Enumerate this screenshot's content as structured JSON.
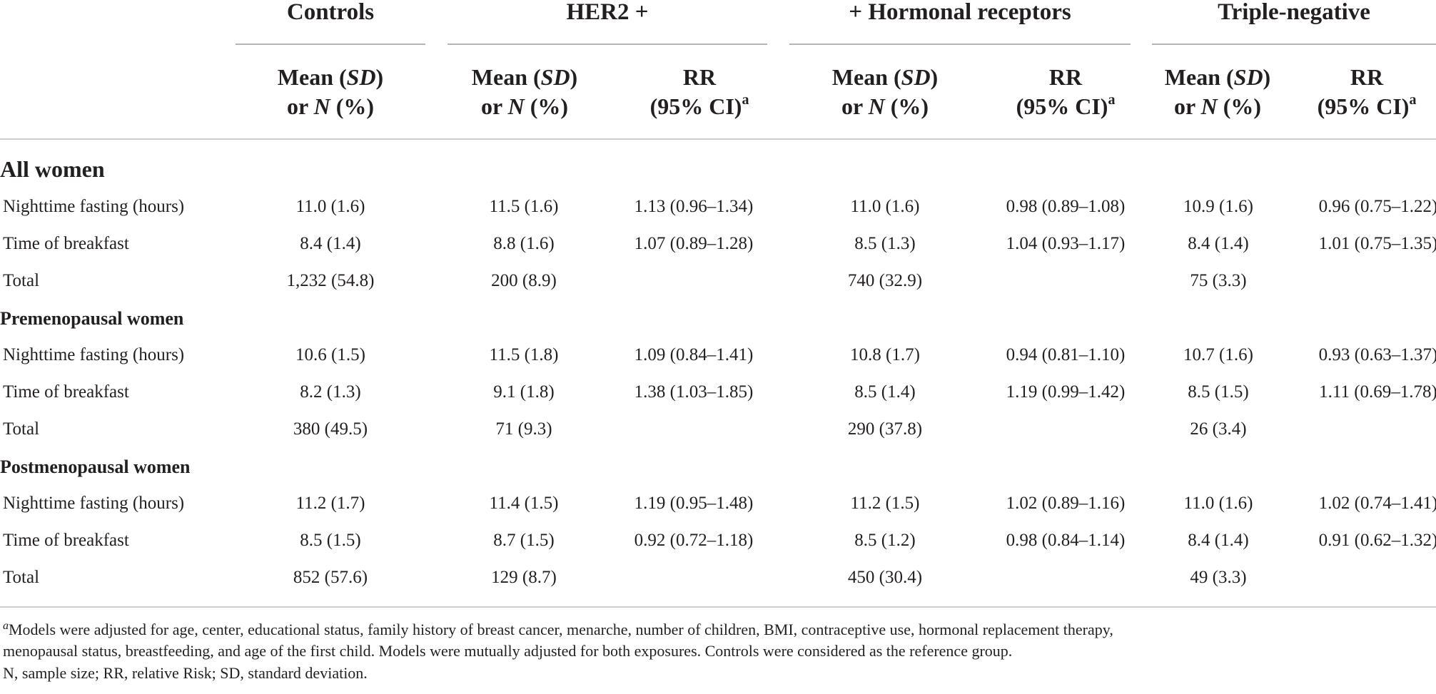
{
  "groups": {
    "controls": "Controls",
    "her2": "HER2 +",
    "hormonal": "+ Hormonal receptors",
    "triple": "Triple-negative"
  },
  "subheaders": {
    "mean_word": "Mean",
    "sd": "SD",
    "or_word": "or",
    "n": "N",
    "pct": "(%)",
    "rr": "RR",
    "ci": "(95% CI)",
    "sup": "a"
  },
  "sections": [
    {
      "label": "All women",
      "rows": [
        {
          "label": "Nighttime fasting (hours)",
          "controls": "11.0 (1.6)",
          "her2_mean": "11.5 (1.6)",
          "her2_rr": "1.13 (0.96–1.34)",
          "hr_mean": "11.0 (1.6)",
          "hr_rr": "0.98 (0.89–1.08)",
          "tn_mean": "10.9 (1.6)",
          "tn_rr": "0.96 (0.75–1.22)"
        },
        {
          "label": "Time of breakfast",
          "controls": "8.4 (1.4)",
          "her2_mean": "8.8 (1.6)",
          "her2_rr": "1.07 (0.89–1.28)",
          "hr_mean": "8.5 (1.3)",
          "hr_rr": "1.04 (0.93–1.17)",
          "tn_mean": "8.4 (1.4)",
          "tn_rr": "1.01 (0.75–1.35)"
        },
        {
          "label": "Total",
          "controls": "1,232 (54.8)",
          "her2_mean": "200 (8.9)",
          "her2_rr": "",
          "hr_mean": "740 (32.9)",
          "hr_rr": "",
          "tn_mean": "75 (3.3)",
          "tn_rr": ""
        }
      ]
    },
    {
      "label": "Premenopausal women",
      "rows": [
        {
          "label": "Nighttime fasting (hours)",
          "controls": "10.6 (1.5)",
          "her2_mean": "11.5 (1.8)",
          "her2_rr": "1.09 (0.84–1.41)",
          "hr_mean": "10.8 (1.7)",
          "hr_rr": "0.94 (0.81–1.10)",
          "tn_mean": "10.7 (1.6)",
          "tn_rr": "0.93 (0.63–1.37)"
        },
        {
          "label": "Time of breakfast",
          "controls": "8.2 (1.3)",
          "her2_mean": "9.1 (1.8)",
          "her2_rr": "1.38 (1.03–1.85)",
          "hr_mean": "8.5 (1.4)",
          "hr_rr": "1.19 (0.99–1.42)",
          "tn_mean": "8.5 (1.5)",
          "tn_rr": "1.11 (0.69–1.78)"
        },
        {
          "label": "Total",
          "controls": "380 (49.5)",
          "her2_mean": "71 (9.3)",
          "her2_rr": "",
          "hr_mean": "290 (37.8)",
          "hr_rr": "",
          "tn_mean": "26 (3.4)",
          "tn_rr": ""
        }
      ]
    },
    {
      "label": "Postmenopausal women",
      "rows": [
        {
          "label": "Nighttime fasting (hours)",
          "controls": "11.2 (1.7)",
          "her2_mean": "11.4 (1.5)",
          "her2_rr": "1.19 (0.95–1.48)",
          "hr_mean": "11.2 (1.5)",
          "hr_rr": "1.02 (0.89–1.16)",
          "tn_mean": "11.0 (1.6)",
          "tn_rr": "1.02 (0.74–1.41)"
        },
        {
          "label": "Time of breakfast",
          "controls": "8.5 (1.5)",
          "her2_mean": "8.7 (1.5)",
          "her2_rr": "0.92 (0.72–1.18)",
          "hr_mean": "8.5 (1.2)",
          "hr_rr": "0.98 (0.84–1.14)",
          "tn_mean": "8.4 (1.4)",
          "tn_rr": "0.91 (0.62–1.32)"
        },
        {
          "label": "Total",
          "controls": "852 (57.6)",
          "her2_mean": "129 (8.7)",
          "her2_rr": "",
          "hr_mean": "450 (30.4)",
          "hr_rr": "",
          "tn_mean": "49 (3.3)",
          "tn_rr": ""
        }
      ]
    }
  ],
  "footnotes": {
    "marker": "a",
    "models_line1": "Models were adjusted for age, center, educational status, family history of breast cancer, menarche, number of children, BMI, contraceptive use, hormonal replacement therapy,",
    "models_line2": "menopausal status, breastfeeding, and age of the first child. Models were mutually adjusted for both exposures. Controls were considered as the reference group.",
    "abbreviations": "N, sample size; RR, relative Risk; SD, standard deviation."
  }
}
